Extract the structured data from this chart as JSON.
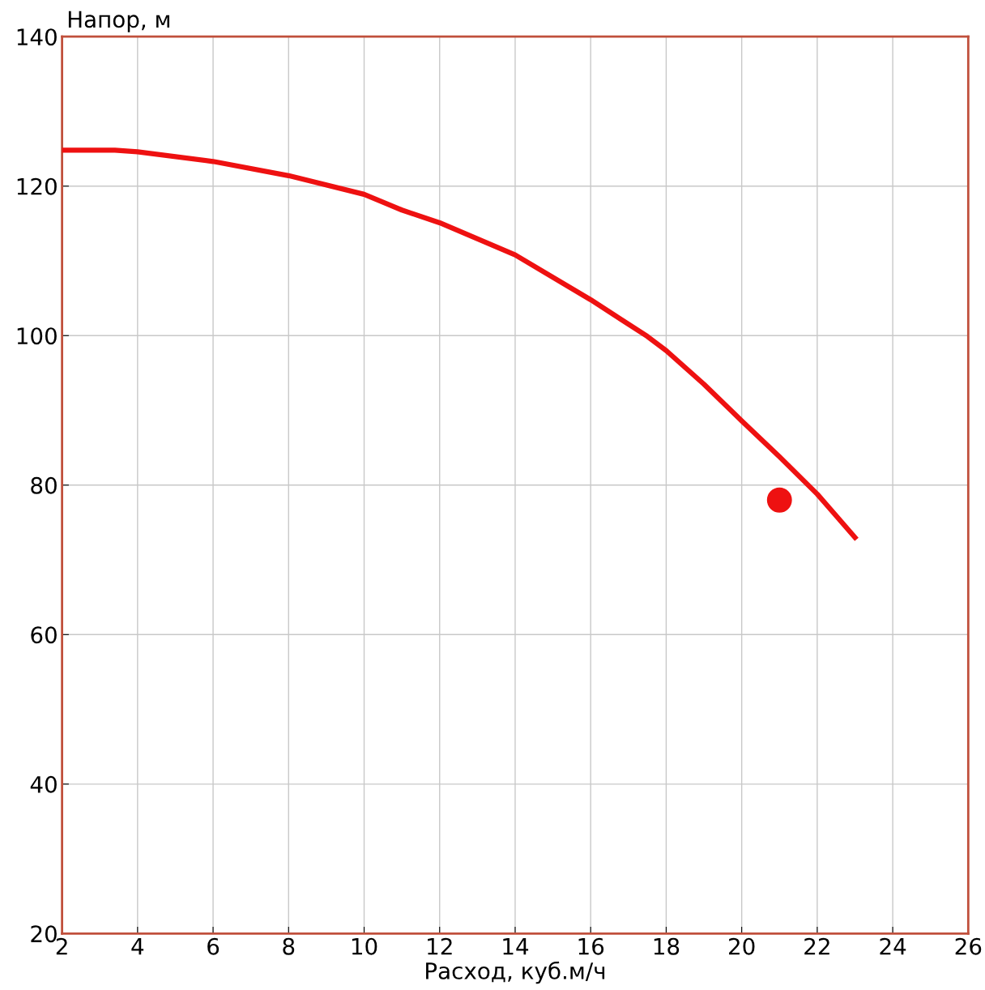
{
  "chart_data": {
    "type": "line",
    "xlabel": "Расход, куб.м/ч",
    "ylabel": "Напор, м",
    "xlim": [
      2,
      26
    ],
    "xticks": [
      2,
      4,
      6,
      8,
      10,
      12,
      14,
      16,
      18,
      20,
      22,
      24,
      26
    ],
    "ylim": [
      20,
      140
    ],
    "yticks": [
      20,
      40,
      60,
      80,
      100,
      120,
      140
    ],
    "grid": true,
    "legend": false,
    "marker": "none",
    "line_style": "solid",
    "series": [
      {
        "color": "#ee1111",
        "x": [
          2,
          3.4,
          4,
          6,
          8,
          10,
          11,
          12,
          14,
          16,
          17.5,
          18,
          19,
          20,
          21,
          22,
          23
        ],
        "values": [
          124.8,
          124.8,
          124.6,
          123.3,
          121.4,
          118.9,
          116.8,
          115.1,
          110.8,
          104.8,
          99.9,
          98.0,
          93.5,
          88.6,
          83.8,
          78.8,
          73.0
        ]
      },
      {
        "type": "scatter",
        "color": "#ee1111",
        "x": [
          21
        ],
        "values": [
          78.0
        ],
        "marker": "circle"
      }
    ]
  }
}
